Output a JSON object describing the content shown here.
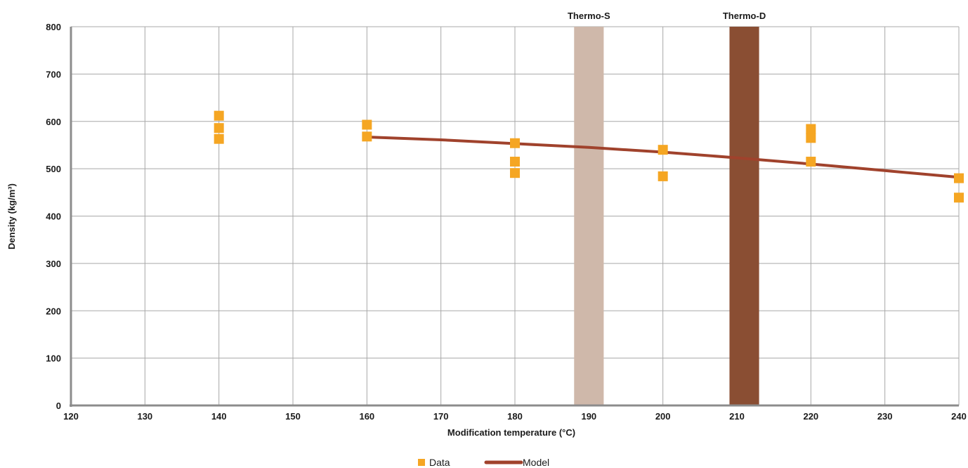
{
  "chart_data": {
    "type": "scatter",
    "xlabel": "Modification temperature (°C)",
    "ylabel": "Density (kg/m³)",
    "xlim": [
      120,
      240
    ],
    "ylim": [
      0,
      800
    ],
    "x_ticks": [
      120,
      130,
      140,
      150,
      160,
      170,
      180,
      190,
      200,
      210,
      220,
      230,
      240
    ],
    "y_ticks": [
      0,
      100,
      200,
      300,
      400,
      500,
      600,
      700,
      800
    ],
    "grid": true,
    "legend_position": "bottom-center",
    "bands": [
      {
        "label": "Thermo-S",
        "x_from": 188,
        "x_to": 192,
        "color": "#cfb8aa"
      },
      {
        "label": "Thermo-D",
        "x_from": 209,
        "x_to": 213,
        "color": "#8a4e33"
      }
    ],
    "series": [
      {
        "name": "Data",
        "kind": "scatter",
        "color": "#f5a623",
        "points": [
          [
            140,
            612
          ],
          [
            140,
            586
          ],
          [
            140,
            563
          ],
          [
            160,
            593
          ],
          [
            160,
            568
          ],
          [
            180,
            554
          ],
          [
            180,
            515
          ],
          [
            180,
            491
          ],
          [
            200,
            540
          ],
          [
            200,
            484
          ],
          [
            220,
            584
          ],
          [
            220,
            565
          ],
          [
            220,
            515
          ],
          [
            240,
            480
          ],
          [
            240,
            439
          ]
        ]
      },
      {
        "name": "Model",
        "kind": "line",
        "color": "#a0422c",
        "points": [
          [
            160,
            567
          ],
          [
            170,
            561
          ],
          [
            180,
            553
          ],
          [
            190,
            545
          ],
          [
            200,
            535
          ],
          [
            210,
            523
          ],
          [
            220,
            510
          ],
          [
            230,
            496
          ],
          [
            240,
            482
          ]
        ]
      }
    ],
    "legend": [
      {
        "label": "Data",
        "color": "#f5a623",
        "marker": "square"
      },
      {
        "label": "Model",
        "color": "#a0422c",
        "marker": "line"
      }
    ]
  }
}
